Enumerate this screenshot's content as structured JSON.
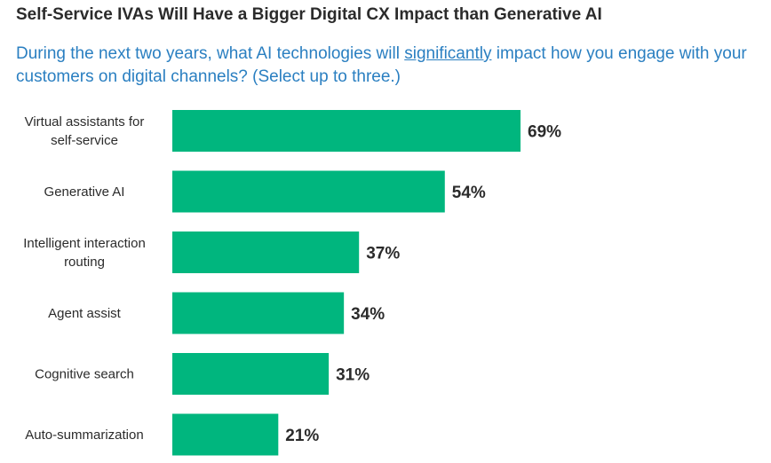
{
  "header": {
    "title": "Self-Service IVAs Will Have a Bigger Digital CX Impact than Generative AI",
    "question_before": "During the next two years, what AI technologies will ",
    "question_emphasis": "significantly",
    "question_after": " impact how you engage with your customers on digital channels? (Select up to three.)"
  },
  "colors": {
    "bar": "#00b67e",
    "question": "#2a7fc1",
    "text": "#2b2b2b"
  },
  "chart_data": {
    "type": "bar",
    "orientation": "horizontal",
    "title": "Self-Service IVAs Will Have a Bigger Digital CX Impact than Generative AI",
    "categories": [
      [
        "Virtual assistants for",
        "self-service"
      ],
      [
        "Generative AI"
      ],
      [
        "Intelligent interaction",
        "routing"
      ],
      [
        "Agent assist"
      ],
      [
        "Cognitive search"
      ],
      [
        "Auto-summarization"
      ]
    ],
    "values": [
      69,
      54,
      37,
      34,
      31,
      21
    ],
    "value_labels": [
      "69%",
      "54%",
      "37%",
      "34%",
      "31%",
      "21%"
    ],
    "unit": "%",
    "xlim": [
      0,
      100
    ],
    "grid": false,
    "legend": "none"
  }
}
